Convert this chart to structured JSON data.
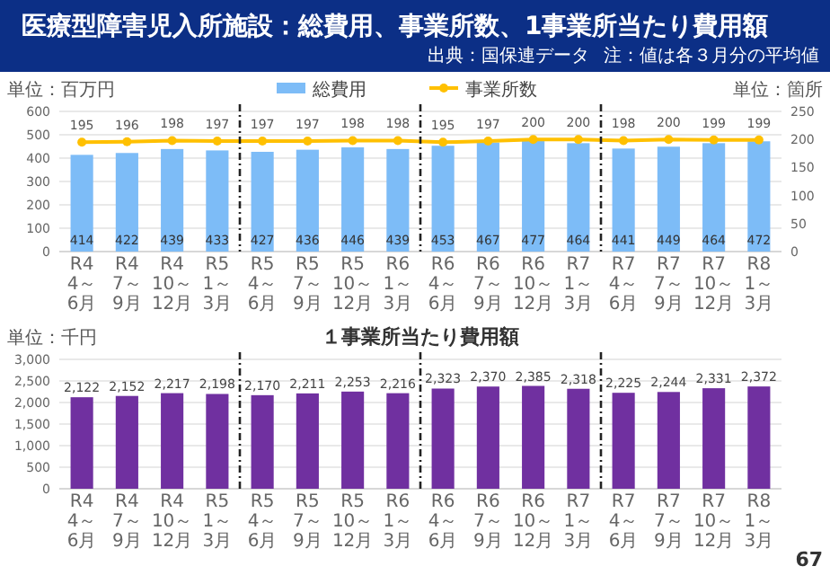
{
  "chart_data": [
    {
      "type": "bar",
      "title": "医療型障害児入所施設：総費用、事業所数、1事業所当たり費用額",
      "annotations": [
        "出典：国保連データ",
        "注：値は各３月分の平均値"
      ],
      "ylabel": "単位：百万円",
      "y2label": "単位：箇所",
      "categories": [
        "R4 4～6月",
        "R4 7～9月",
        "R4 10～12月",
        "R5 1～3月",
        "R5 4～6月",
        "R5 7～9月",
        "R5 10～12月",
        "R6 1～3月",
        "R6 4～6月",
        "R6 7～9月",
        "R6 10～12月",
        "R7 1～3月",
        "R7 4～6月",
        "R7 7～9月",
        "R7 10～12月",
        "R8 1～3月"
      ],
      "series": [
        {
          "name": "総費用",
          "color": "#7dbcf7",
          "values": [
            414,
            422,
            439,
            433,
            427,
            436,
            446,
            439,
            453,
            467,
            477,
            464,
            441,
            449,
            464,
            472
          ]
        },
        {
          "name": "事業所数",
          "type": "line",
          "axis": "y2",
          "color": "#ffc000",
          "values": [
            195,
            196,
            198,
            197,
            197,
            197,
            198,
            198,
            195,
            197,
            200,
            200,
            198,
            200,
            199,
            199
          ]
        }
      ],
      "ylim": [
        0,
        600
      ],
      "yticks": [
        0,
        100,
        200,
        300,
        400,
        500,
        600
      ],
      "y2lim": [
        0,
        250
      ],
      "y2ticks": [
        0,
        50,
        100,
        150,
        200,
        250
      ],
      "data_labels": true,
      "legend": "top",
      "grid": "y",
      "marker": "circle"
    },
    {
      "type": "bar",
      "title": "１事業所当たり費用額",
      "ylabel": "単位：千円",
      "annotations": [
        "67"
      ],
      "categories": [
        "R4 4～6月",
        "R4 7～9月",
        "R4 10～12月",
        "R5 1～3月",
        "R5 4～6月",
        "R5 7～9月",
        "R5 10～12月",
        "R6 1～3月",
        "R6 4～6月",
        "R6 7～9月",
        "R6 10～12月",
        "R7 1～3月",
        "R7 4～6月",
        "R7 7～9月",
        "R7 10～12月",
        "R8 1～3月"
      ],
      "values": [
        2122,
        2152,
        2217,
        2198,
        2170,
        2211,
        2253,
        2216,
        2323,
        2370,
        2385,
        2318,
        2225,
        2244,
        2331,
        2372
      ],
      "value_labels": [
        "2,122",
        "2,152",
        "2,217",
        "2,198",
        "2,170",
        "2,211",
        "2,253",
        "2,216",
        "2,323",
        "2,370",
        "2,385",
        "2,318",
        "2,225",
        "2,244",
        "2,331",
        "2,372"
      ],
      "color": "#7030a0",
      "ylim": [
        0,
        3000
      ],
      "yticks": [
        {
          "value": 0,
          "label": "0"
        },
        {
          "value": 500,
          "label": "500"
        },
        {
          "value": 1000,
          "label": "1,000"
        },
        {
          "value": 1500,
          "label": "1,500"
        },
        {
          "value": 2000,
          "label": "2,000"
        },
        {
          "value": 2500,
          "label": "2,500"
        },
        {
          "value": 3000,
          "label": "3,000"
        }
      ],
      "grid": "y"
    }
  ]
}
